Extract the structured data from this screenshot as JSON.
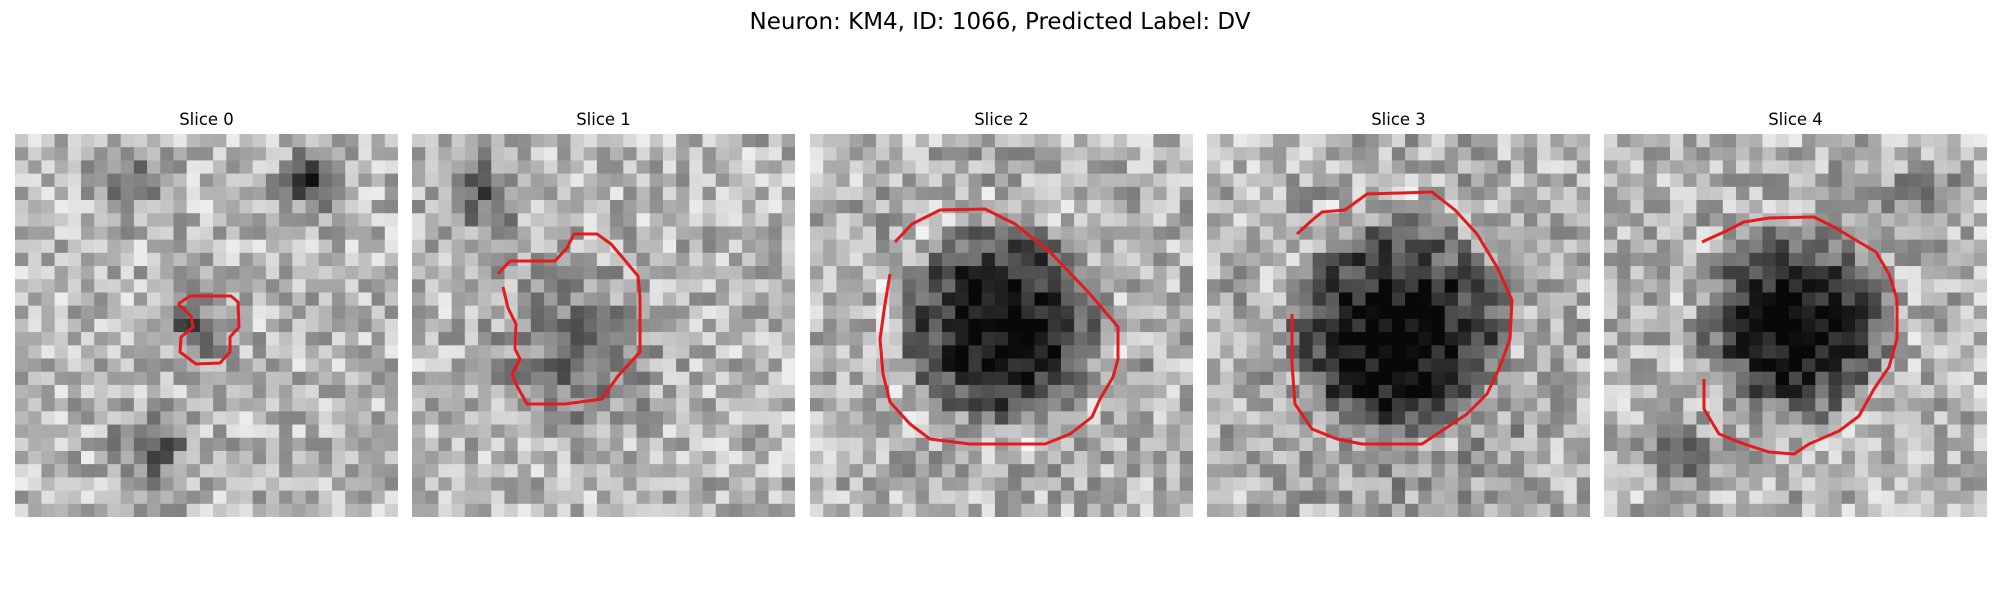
{
  "figure": {
    "title": "Neuron: KM4, ID: 1066, Predicted Label: DV",
    "panels": [
      {
        "title": "Slice 0"
      },
      {
        "title": "Slice 1"
      },
      {
        "title": "Slice 2"
      },
      {
        "title": "Slice 3"
      },
      {
        "title": "Slice 4"
      }
    ]
  },
  "colors": {
    "contour": "#e41a1c",
    "background": "#ffffff"
  },
  "colormap": "gray"
}
